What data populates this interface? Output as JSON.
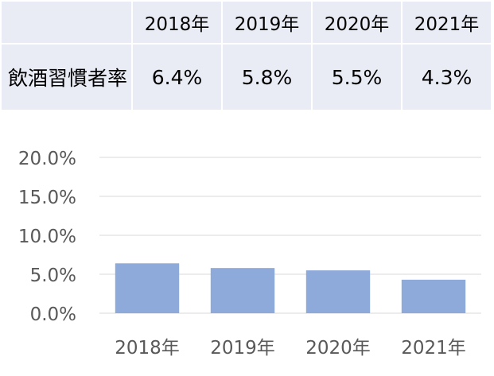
{
  "table": {
    "corner": "",
    "row_label": "飲酒習慣者率",
    "columns": [
      "2018年",
      "2019年",
      "2020年",
      "2021年"
    ],
    "values": [
      "6.4%",
      "5.8%",
      "5.5%",
      "4.3%"
    ]
  },
  "chart_data": {
    "type": "bar",
    "categories": [
      "2018年",
      "2019年",
      "2020年",
      "2021年"
    ],
    "values": [
      6.4,
      5.8,
      5.5,
      4.3
    ],
    "ylim": [
      0,
      20
    ],
    "yticks": [
      "0.0%",
      "5.0%",
      "10.0%",
      "15.0%",
      "20.0%"
    ],
    "title": "",
    "xlabel": "",
    "ylabel": "",
    "grid": true,
    "legend": "none",
    "bar_color": "#8eaadb",
    "grid_color": "#d9d9d9",
    "tick_color": "#595959"
  }
}
